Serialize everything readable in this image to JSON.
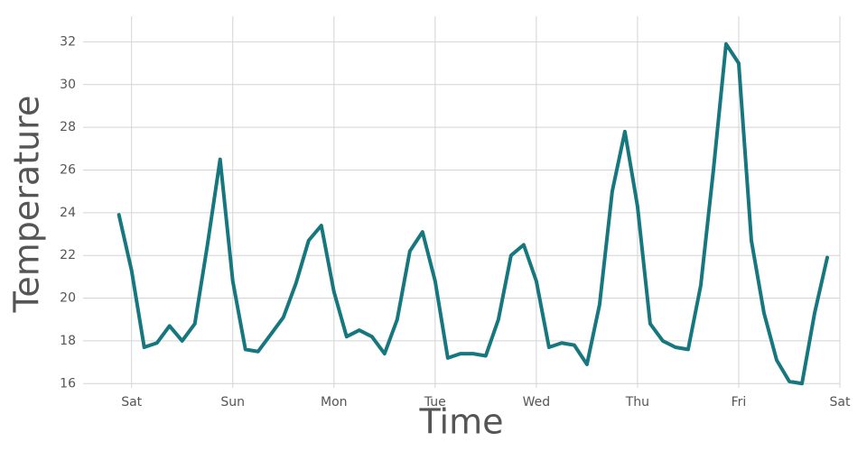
{
  "chart_data": {
    "type": "line",
    "x_label": "Time",
    "y_label": "Temperature",
    "x": [
      -3,
      0,
      3,
      6,
      9,
      12,
      15,
      18,
      21,
      24,
      27,
      30,
      33,
      36,
      39,
      42,
      45,
      48,
      51,
      54,
      57,
      60,
      63,
      66,
      69,
      72,
      75,
      78,
      81,
      84,
      87,
      90,
      93,
      96,
      99,
      102,
      105,
      108,
      111,
      114,
      117,
      120,
      123,
      126,
      129,
      132,
      135,
      138,
      141,
      144,
      147,
      150,
      153,
      156,
      159,
      162,
      165
    ],
    "series": [
      {
        "name": "Temperature",
        "color": "#17777e",
        "values": [
          23.9,
          21.3,
          17.7,
          17.9,
          18.7,
          18.0,
          18.8,
          22.5,
          26.5,
          20.8,
          17.6,
          17.5,
          18.3,
          19.1,
          20.7,
          22.7,
          23.4,
          20.3,
          18.2,
          18.5,
          18.2,
          17.4,
          19.0,
          22.2,
          23.1,
          20.8,
          17.2,
          17.4,
          17.4,
          17.3,
          19.0,
          22.0,
          22.5,
          20.8,
          17.7,
          17.9,
          17.8,
          16.9,
          19.7,
          25.0,
          27.8,
          24.3,
          18.8,
          18.0,
          17.7,
          17.6,
          20.6,
          26.0,
          31.9,
          31.0,
          22.7,
          19.3,
          17.1,
          16.1,
          16.0,
          19.3,
          21.9
        ]
      }
    ],
    "xlim": [
      -11.5,
      168
    ],
    "xticks": [
      {
        "value": 0,
        "label": "Sat"
      },
      {
        "value": 24,
        "label": "Sun"
      },
      {
        "value": 48,
        "label": "Mon"
      },
      {
        "value": 72,
        "label": "Tue"
      },
      {
        "value": 96,
        "label": "Wed"
      },
      {
        "value": 120,
        "label": "Thu"
      },
      {
        "value": 144,
        "label": "Fri"
      },
      {
        "value": 168,
        "label": "Sat"
      }
    ],
    "ylim": [
      15.8,
      33.2
    ],
    "yticks": [
      16,
      18,
      20,
      22,
      24,
      26,
      28,
      30,
      32
    ],
    "grid": true
  }
}
